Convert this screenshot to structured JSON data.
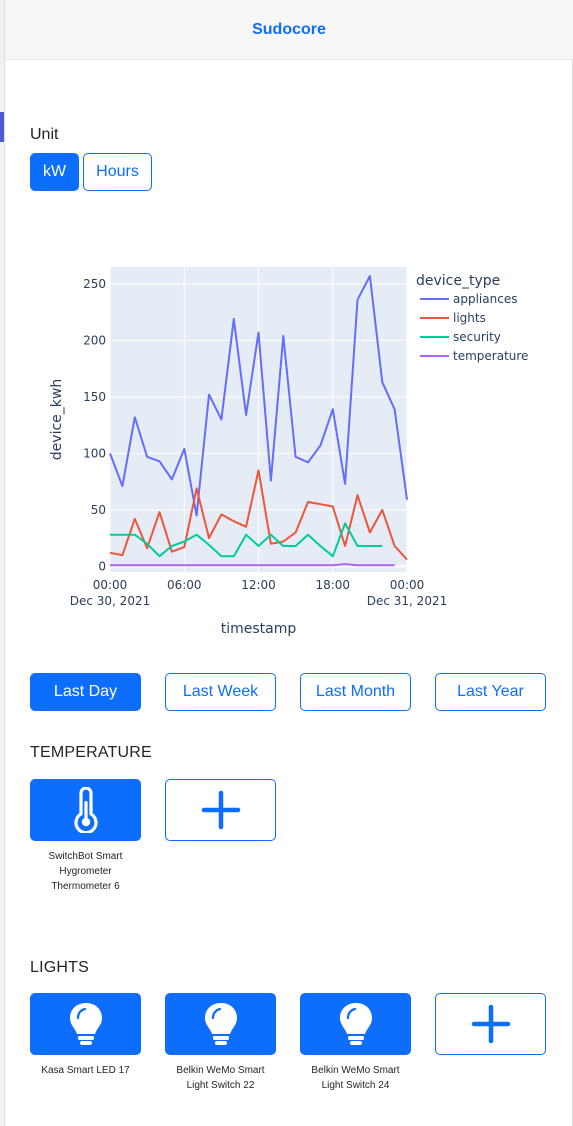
{
  "header": {
    "brand": "Sudocore"
  },
  "unit": {
    "label": "Unit",
    "options": [
      "kW",
      "Hours"
    ],
    "selected": "kW"
  },
  "chart_data": {
    "type": "line",
    "xlabel": "timestamp",
    "ylabel": "device_kwh",
    "legend_title": "device_type",
    "legend_position": "right",
    "grid": true,
    "x_hours": [
      0,
      1,
      2,
      3,
      4,
      5,
      6,
      7,
      8,
      9,
      10,
      11,
      12,
      13,
      14,
      15,
      16,
      17,
      18,
      19,
      20,
      21,
      22,
      23,
      24
    ],
    "xlim": [
      0,
      24
    ],
    "ylim": [
      -5,
      265
    ],
    "x_ticks": [
      "00:00\nDec 30, 2021",
      "06:00",
      "12:00",
      "18:00",
      "00:00\nDec 31, 2021"
    ],
    "y_ticks": [
      "0",
      "50",
      "100",
      "150",
      "200",
      "250"
    ],
    "series": [
      {
        "name": "appliances",
        "color": "#636efa",
        "values": [
          100,
          71,
          132,
          97,
          93,
          77,
          104,
          45,
          152,
          130,
          219,
          134,
          207,
          76,
          204,
          97,
          92,
          107,
          139,
          73,
          236,
          257,
          163,
          139,
          59
        ]
      },
      {
        "name": "lights",
        "color": "#ef553b",
        "values": [
          12,
          10,
          42,
          16,
          48,
          13,
          17,
          69,
          25,
          46,
          40,
          35,
          85,
          20,
          22,
          30,
          57,
          55,
          53,
          18,
          63,
          30,
          50,
          18,
          6
        ]
      },
      {
        "name": "security",
        "color": "#00cc96",
        "values": [
          28,
          28,
          28,
          20,
          9,
          18,
          22,
          28,
          19,
          9,
          9,
          28,
          18,
          28,
          18,
          18,
          28,
          18,
          9,
          38,
          18,
          18,
          18,
          null,
          null
        ]
      },
      {
        "name": "temperature",
        "color": "#ab63fa",
        "values": [
          1,
          1,
          1,
          1,
          1,
          1,
          1,
          1,
          1,
          1,
          1,
          1,
          1,
          1,
          1,
          1,
          1,
          1,
          1,
          2,
          1,
          1,
          1,
          1,
          null
        ]
      }
    ]
  },
  "ranges": {
    "options": [
      "Last Day",
      "Last Week",
      "Last Month",
      "Last Year"
    ],
    "selected": "Last Day"
  },
  "temperature": {
    "title": "TEMPERATURE",
    "devices": [
      {
        "name": "SwitchBot Smart Hygrometer Thermometer 6",
        "icon": "thermometer-icon"
      }
    ],
    "add_icon": "plus-icon"
  },
  "lights": {
    "title": "LIGHTS",
    "devices": [
      {
        "name": "Kasa Smart LED 17",
        "icon": "lightbulb-icon"
      },
      {
        "name": "Belkin WeMo Smart Light Switch 22",
        "icon": "lightbulb-icon"
      },
      {
        "name": "Belkin WeMo Smart Light Switch 24",
        "icon": "lightbulb-icon"
      }
    ],
    "add_icon": "plus-icon"
  },
  "colors": {
    "accent": "#0d6efd",
    "plot_bg": "#e5ecf6"
  }
}
